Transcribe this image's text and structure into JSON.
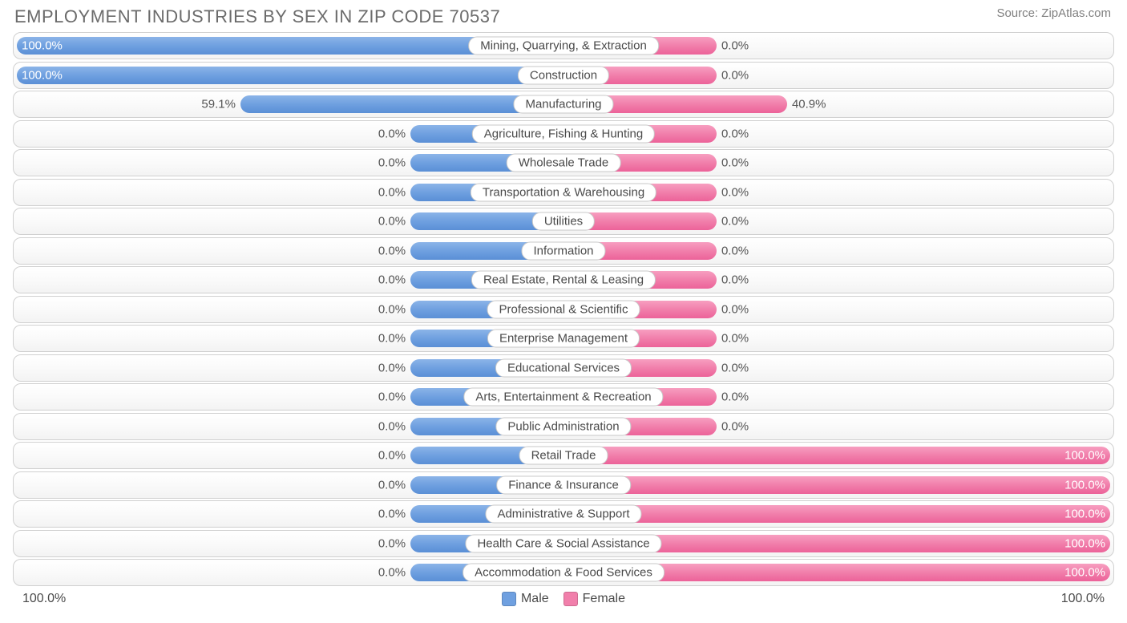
{
  "chart": {
    "type": "diverging-bar",
    "title": "EMPLOYMENT INDUSTRIES BY SEX IN ZIP CODE 70537",
    "source": "Source: ZipAtlas.com",
    "axis_left": "100.0%",
    "axis_right": "100.0%",
    "legend": {
      "male": "Male",
      "female": "Female"
    },
    "colors": {
      "male": "#6fa0e0",
      "female": "#f17fab",
      "row_border": "#d0d0d0",
      "text": "#4a4a4a",
      "title": "#6b6b6b"
    },
    "min_bar_pct": 28,
    "rows": [
      {
        "label": "Mining, Quarrying, & Extraction",
        "male": 100.0,
        "female": 0.0
      },
      {
        "label": "Construction",
        "male": 100.0,
        "female": 0.0
      },
      {
        "label": "Manufacturing",
        "male": 59.1,
        "female": 40.9
      },
      {
        "label": "Agriculture, Fishing & Hunting",
        "male": 0.0,
        "female": 0.0
      },
      {
        "label": "Wholesale Trade",
        "male": 0.0,
        "female": 0.0
      },
      {
        "label": "Transportation & Warehousing",
        "male": 0.0,
        "female": 0.0
      },
      {
        "label": "Utilities",
        "male": 0.0,
        "female": 0.0
      },
      {
        "label": "Information",
        "male": 0.0,
        "female": 0.0
      },
      {
        "label": "Real Estate, Rental & Leasing",
        "male": 0.0,
        "female": 0.0
      },
      {
        "label": "Professional & Scientific",
        "male": 0.0,
        "female": 0.0
      },
      {
        "label": "Enterprise Management",
        "male": 0.0,
        "female": 0.0
      },
      {
        "label": "Educational Services",
        "male": 0.0,
        "female": 0.0
      },
      {
        "label": "Arts, Entertainment & Recreation",
        "male": 0.0,
        "female": 0.0
      },
      {
        "label": "Public Administration",
        "male": 0.0,
        "female": 0.0
      },
      {
        "label": "Retail Trade",
        "male": 0.0,
        "female": 100.0
      },
      {
        "label": "Finance & Insurance",
        "male": 0.0,
        "female": 100.0
      },
      {
        "label": "Administrative & Support",
        "male": 0.0,
        "female": 100.0
      },
      {
        "label": "Health Care & Social Assistance",
        "male": 0.0,
        "female": 100.0
      },
      {
        "label": "Accommodation & Food Services",
        "male": 0.0,
        "female": 100.0
      }
    ]
  }
}
